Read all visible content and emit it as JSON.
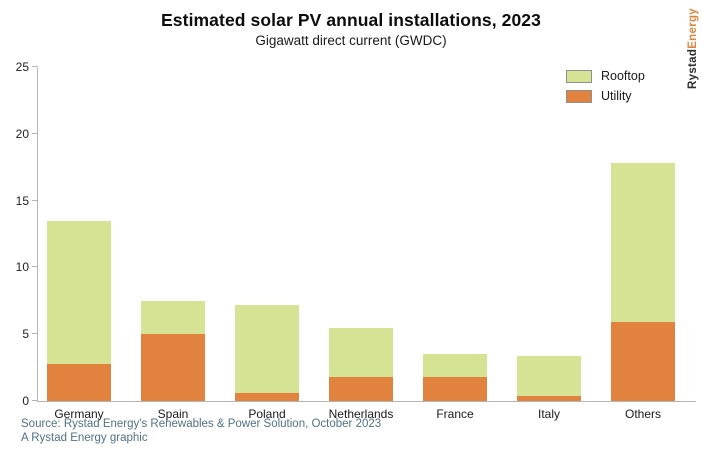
{
  "chart": {
    "title": "Estimated solar PV annual installations, 2023",
    "subtitle": "Gigawatt direct current (GWDC)"
  },
  "logo": {
    "part1": "Rystad",
    "part2": "Energy"
  },
  "legend": {
    "rooftop_label": "Rooftop",
    "utility_label": "Utility"
  },
  "footer": {
    "source_line": "Source: Rystad Energy's Renewables & Power Solution, October 2023",
    "credit_line": "A Rystad Energy graphic"
  },
  "colors": {
    "rooftop": "#d6e294",
    "utility": "#e2823f",
    "axis": "#b5b5b5",
    "source_text": "#4f7286"
  },
  "chart_data": {
    "type": "bar",
    "stacked": true,
    "title": "Estimated solar PV annual installations, 2023",
    "subtitle": "Gigawatt direct current (GWDC)",
    "xlabel": "",
    "ylabel": "Gigawatt direct current (GWDC)",
    "ylim": [
      0,
      25
    ],
    "yticks": [
      0,
      5,
      10,
      15,
      20,
      25
    ],
    "grid": false,
    "legend_position": "top-right",
    "categories": [
      "Germany",
      "Spain",
      "Poland",
      "Netherlands",
      "France",
      "Italy",
      "Others"
    ],
    "series": [
      {
        "name": "Utility",
        "color": "#e2823f",
        "values": [
          2.8,
          5.0,
          0.6,
          1.8,
          1.8,
          0.4,
          5.9
        ]
      },
      {
        "name": "Rooftop",
        "color": "#d6e294",
        "values": [
          10.7,
          2.5,
          6.6,
          3.7,
          1.7,
          3.0,
          11.9
        ]
      }
    ],
    "totals": [
      13.5,
      7.5,
      7.2,
      5.5,
      3.5,
      3.4,
      17.8
    ]
  }
}
